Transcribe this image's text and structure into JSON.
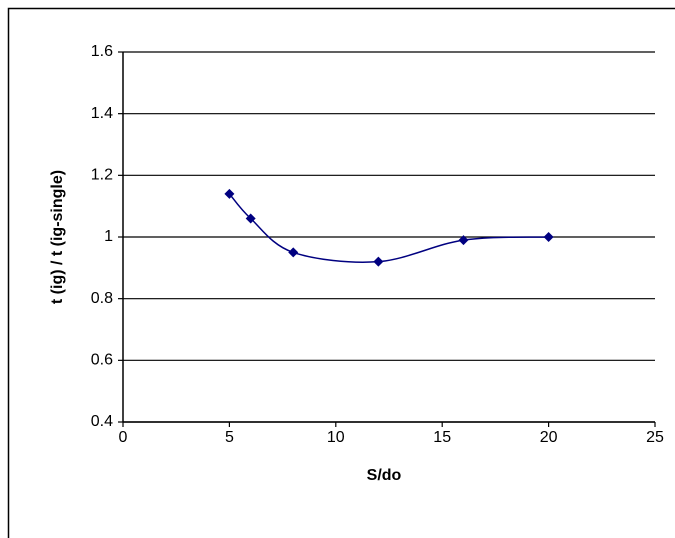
{
  "chart_data": {
    "type": "scatter",
    "smooth": true,
    "x_label": "S/do",
    "y_label": "t (ig) / t (ig-single)",
    "x": [
      5,
      6,
      8,
      12,
      16,
      20
    ],
    "series": [
      {
        "color": "#000080",
        "values": [
          1.14,
          1.06,
          0.95,
          0.92,
          0.99,
          1.0
        ]
      }
    ],
    "xlim": [
      0,
      25
    ],
    "xticks": [
      0,
      5,
      10,
      15,
      20,
      25
    ],
    "ylim": [
      0.4,
      1.6
    ],
    "yticks": [
      0.4,
      0.6,
      0.8,
      1,
      1.2,
      1.4,
      1.6
    ],
    "grid": true
  }
}
